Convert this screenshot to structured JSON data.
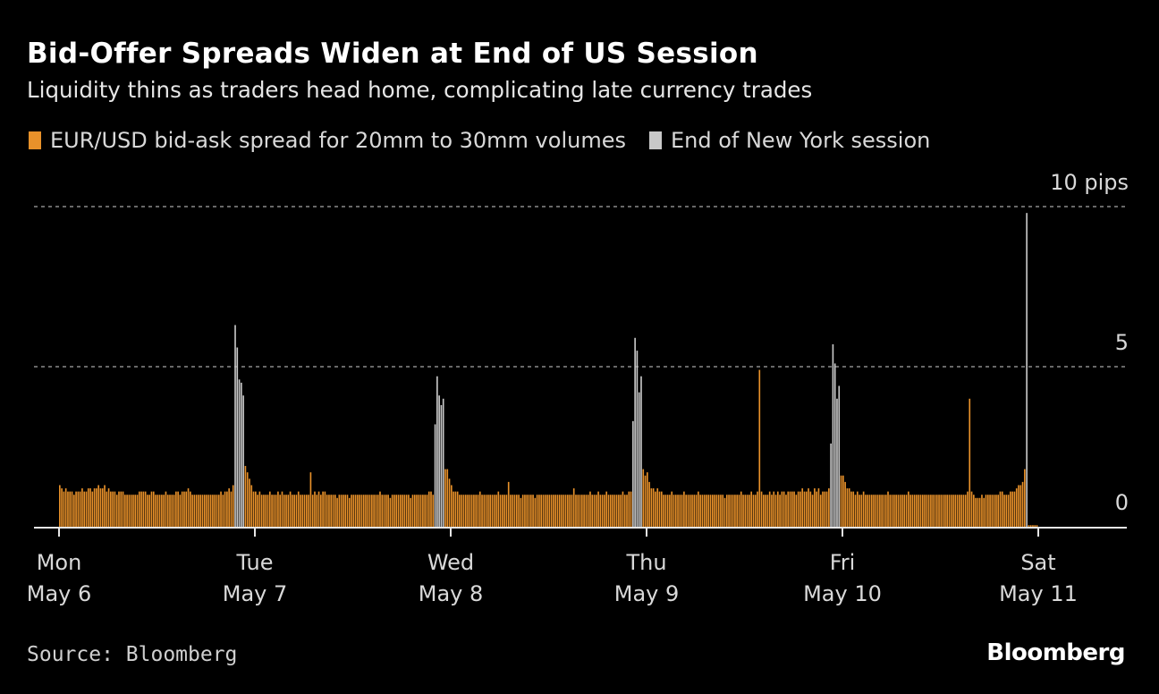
{
  "title": "Bid-Offer Spreads Widen at End of US Session",
  "subtitle": "Liquidity thins as traders head home, complicating late currency trades",
  "source": "Source: Bloomberg",
  "logo": "Bloomberg",
  "colors": {
    "spread": "#e8912a",
    "session_end": "#c8c8c8",
    "background": "#000000"
  },
  "chart_data": {
    "type": "bar",
    "title": "Bid-Offer Spreads Widen at End of US Session",
    "legend": [
      {
        "label": "EUR/USD bid-ask spread for 20mm to 30mm volumes",
        "color": "#e8912a"
      },
      {
        "label": "End of New York session",
        "color": "#c8c8c8"
      }
    ],
    "legend_placement": "top-left",
    "ylabel": "pips",
    "ylim": [
      0,
      10
    ],
    "yticks": [
      {
        "value": 10,
        "label": "10 pips"
      },
      {
        "value": 5,
        "label": "5"
      },
      {
        "value": 0,
        "label": "0"
      }
    ],
    "grid": true,
    "bins_per_day": 96,
    "xticks": [
      {
        "day": "Mon",
        "date": "May 6"
      },
      {
        "day": "Tue",
        "date": "May 7"
      },
      {
        "day": "Wed",
        "date": "May 8"
      },
      {
        "day": "Thu",
        "date": "May 9"
      },
      {
        "day": "Fri",
        "date": "May 10"
      },
      {
        "day": "Sat",
        "date": "May 11"
      }
    ],
    "session_end_indices": [
      86,
      87,
      88,
      89,
      90,
      184,
      185,
      186,
      187,
      188,
      281,
      282,
      283,
      284,
      285,
      378,
      379,
      380,
      381,
      382,
      474
    ],
    "values": [
      1.3,
      1.2,
      1.1,
      1.2,
      1.1,
      1.1,
      1.1,
      1.0,
      1.1,
      1.1,
      1.1,
      1.2,
      1.1,
      1.1,
      1.2,
      1.2,
      1.1,
      1.2,
      1.2,
      1.3,
      1.2,
      1.2,
      1.3,
      1.1,
      1.2,
      1.1,
      1.1,
      1.1,
      1.0,
      1.1,
      1.1,
      1.1,
      1.0,
      1.0,
      1.0,
      1.0,
      1.0,
      1.0,
      1.0,
      1.1,
      1.1,
      1.1,
      1.1,
      1.0,
      1.0,
      1.1,
      1.1,
      1.0,
      1.0,
      1.0,
      1.0,
      1.0,
      1.1,
      1.0,
      1.0,
      1.0,
      1.0,
      1.1,
      1.1,
      1.0,
      1.1,
      1.1,
      1.1,
      1.2,
      1.1,
      1.0,
      1.0,
      1.0,
      1.0,
      1.0,
      1.0,
      1.0,
      1.0,
      1.0,
      1.0,
      1.0,
      1.0,
      1.0,
      1.0,
      1.1,
      1.0,
      1.1,
      1.1,
      1.2,
      1.1,
      1.3,
      6.3,
      5.6,
      4.6,
      4.5,
      4.1,
      1.9,
      1.7,
      1.5,
      1.3,
      1.1,
      1.1,
      1.0,
      1.1,
      1.0,
      1.0,
      1.0,
      1.0,
      1.1,
      1.0,
      1.0,
      1.0,
      1.1,
      1.0,
      1.1,
      1.0,
      1.0,
      1.0,
      1.1,
      1.0,
      1.0,
      1.0,
      1.1,
      1.0,
      1.0,
      1.0,
      1.0,
      1.0,
      1.7,
      1.0,
      1.1,
      1.0,
      1.1,
      1.0,
      1.1,
      1.1,
      1.0,
      1.0,
      1.0,
      1.0,
      1.0,
      0.9,
      1.0,
      1.0,
      1.0,
      1.0,
      1.0,
      0.9,
      1.0,
      1.0,
      1.0,
      1.0,
      1.0,
      1.0,
      1.0,
      1.0,
      1.0,
      1.0,
      1.0,
      1.0,
      1.0,
      1.0,
      1.1,
      1.0,
      1.0,
      1.0,
      1.0,
      0.9,
      1.0,
      1.0,
      1.0,
      1.0,
      1.0,
      1.0,
      1.0,
      1.0,
      1.0,
      0.9,
      1.0,
      1.0,
      1.0,
      1.0,
      1.0,
      1.0,
      1.0,
      1.0,
      1.1,
      1.1,
      1.0,
      3.2,
      4.7,
      4.1,
      3.8,
      4.0,
      1.8,
      1.8,
      1.5,
      1.3,
      1.1,
      1.1,
      1.1,
      1.0,
      1.0,
      1.0,
      1.0,
      1.0,
      1.0,
      1.0,
      1.0,
      1.0,
      1.0,
      1.1,
      1.0,
      1.0,
      1.0,
      1.0,
      1.0,
      1.0,
      1.0,
      1.0,
      1.1,
      1.0,
      1.0,
      1.0,
      1.0,
      1.4,
      1.0,
      1.0,
      1.0,
      1.0,
      1.0,
      0.9,
      1.0,
      1.0,
      1.0,
      1.0,
      1.0,
      1.0,
      0.9,
      1.0,
      1.0,
      1.0,
      1.0,
      1.0,
      1.0,
      1.0,
      1.0,
      1.0,
      1.0,
      1.0,
      1.0,
      1.0,
      1.0,
      1.0,
      1.0,
      1.0,
      1.0,
      1.2,
      1.0,
      1.0,
      1.0,
      1.0,
      1.0,
      1.0,
      1.0,
      1.1,
      1.0,
      1.0,
      1.0,
      1.1,
      1.0,
      1.0,
      1.0,
      1.1,
      1.0,
      1.0,
      1.0,
      1.0,
      1.0,
      1.0,
      1.0,
      1.1,
      1.0,
      1.0,
      1.1,
      1.1,
      3.3,
      5.9,
      5.5,
      4.2,
      4.7,
      1.8,
      1.6,
      1.7,
      1.4,
      1.2,
      1.2,
      1.1,
      1.2,
      1.1,
      1.1,
      1.0,
      1.0,
      1.0,
      1.0,
      1.1,
      1.0,
      1.0,
      1.0,
      1.0,
      1.0,
      1.1,
      1.0,
      1.0,
      1.0,
      1.0,
      1.0,
      1.0,
      1.1,
      1.0,
      1.0,
      1.0,
      1.0,
      1.0,
      1.0,
      1.0,
      1.0,
      1.0,
      1.0,
      1.0,
      1.0,
      0.9,
      1.0,
      1.0,
      1.0,
      1.0,
      1.0,
      1.0,
      1.0,
      1.1,
      1.0,
      1.0,
      1.0,
      1.0,
      1.1,
      1.0,
      1.0,
      1.1,
      4.9,
      1.1,
      1.0,
      1.0,
      1.0,
      1.1,
      1.0,
      1.1,
      1.0,
      1.1,
      1.0,
      1.1,
      1.1,
      1.0,
      1.1,
      1.1,
      1.1,
      1.1,
      1.0,
      1.1,
      1.1,
      1.2,
      1.1,
      1.1,
      1.2,
      1.1,
      1.0,
      1.2,
      1.1,
      1.2,
      1.0,
      1.1,
      1.1,
      1.1,
      1.2,
      2.6,
      5.7,
      5.1,
      4.0,
      4.4,
      1.6,
      1.6,
      1.4,
      1.2,
      1.2,
      1.1,
      1.1,
      1.0,
      1.1,
      1.0,
      1.0,
      1.1,
      1.0,
      1.0,
      1.0,
      1.0,
      1.0,
      1.0,
      1.0,
      1.0,
      1.0,
      1.0,
      1.0,
      1.1,
      1.0,
      1.0,
      1.0,
      1.0,
      1.0,
      1.0,
      1.0,
      1.0,
      1.0,
      1.1,
      1.0,
      1.0,
      1.0,
      1.0,
      1.0,
      1.0,
      1.0,
      1.0,
      1.0,
      1.0,
      1.0,
      1.0,
      1.0,
      1.0,
      1.0,
      1.0,
      1.0,
      1.0,
      1.0,
      1.0,
      1.0,
      1.0,
      1.0,
      1.0,
      1.0,
      1.0,
      1.0,
      1.0,
      1.1,
      4.0,
      1.1,
      1.0,
      0.9,
      0.9,
      0.9,
      1.0,
      0.9,
      1.0,
      1.0,
      1.0,
      1.0,
      1.0,
      1.0,
      1.0,
      1.1,
      1.1,
      1.0,
      1.0,
      1.0,
      1.1,
      1.1,
      1.1,
      1.2,
      1.3,
      1.3,
      1.4,
      1.8,
      9.8,
      0.05,
      0.05,
      0.05,
      0.05,
      0.05
    ]
  }
}
